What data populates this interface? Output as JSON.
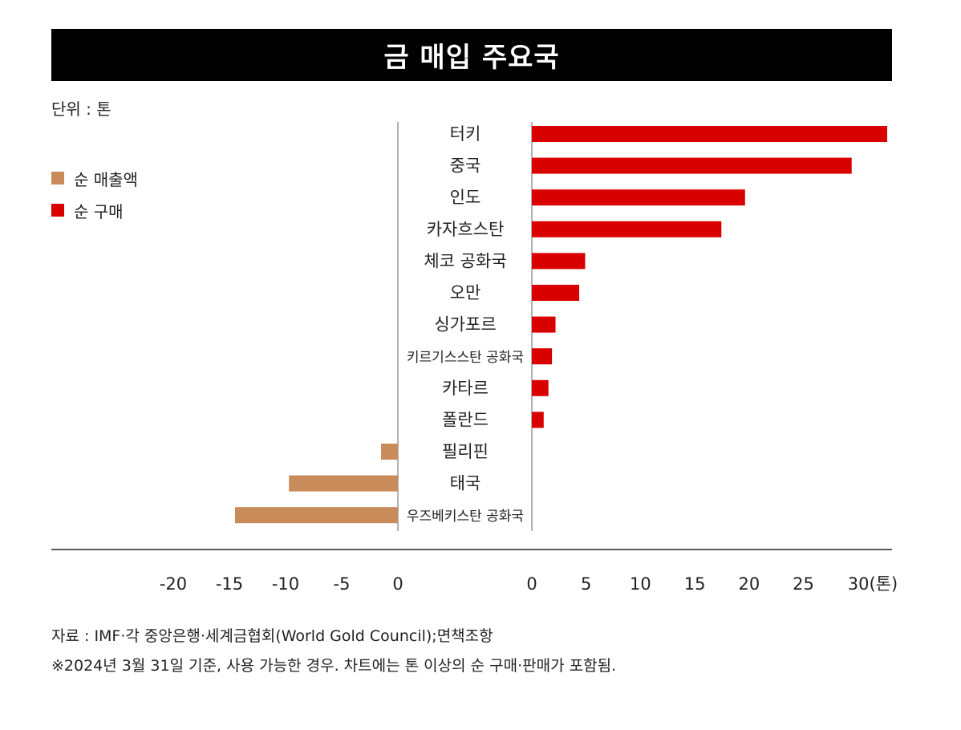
{
  "header": {
    "title": "금 매입 주요국"
  },
  "unit_label": "단위 : 톤",
  "legend": [
    {
      "label": "순 매출액",
      "color": "#c98b5a"
    },
    {
      "label": "순 구매",
      "color": "#d90000"
    }
  ],
  "chart_data": {
    "type": "bar",
    "orientation": "horizontal",
    "categories": [
      "터키",
      "중국",
      "인도",
      "카자흐스탄",
      "체코 공화국",
      "오만",
      "싱가포르",
      "키르기스스탄 공화국",
      "카타르",
      "폴란드",
      "필리핀",
      "태국",
      "우즈베키스탄 공화국"
    ],
    "values": [
      30,
      27,
      18,
      16,
      4.5,
      4,
      2,
      1.7,
      1.4,
      1,
      -1.5,
      -9.7,
      -14.5
    ],
    "positive_color": "#d90000",
    "negative_color": "#c98b5a",
    "negative_axis": {
      "ticks": [
        "-20",
        "-15",
        "-10",
        "-5",
        "0"
      ]
    },
    "positive_axis": {
      "ticks": [
        "0",
        "5",
        "10",
        "15",
        "20",
        "25",
        "30(톤)"
      ]
    },
    "xlim_negative": [
      -30,
      0
    ],
    "xlim_positive": [
      0,
      30
    ],
    "grid": false
  },
  "footer": {
    "source": "자료 : IMF·각 중앙은행·세계금협회(World Gold Council);면책조항",
    "note": "※2024년 3월 31일 기준, 사용 가능한 경우. 차트에는 톤 이상의 순 구매·판매가 포함됨."
  }
}
